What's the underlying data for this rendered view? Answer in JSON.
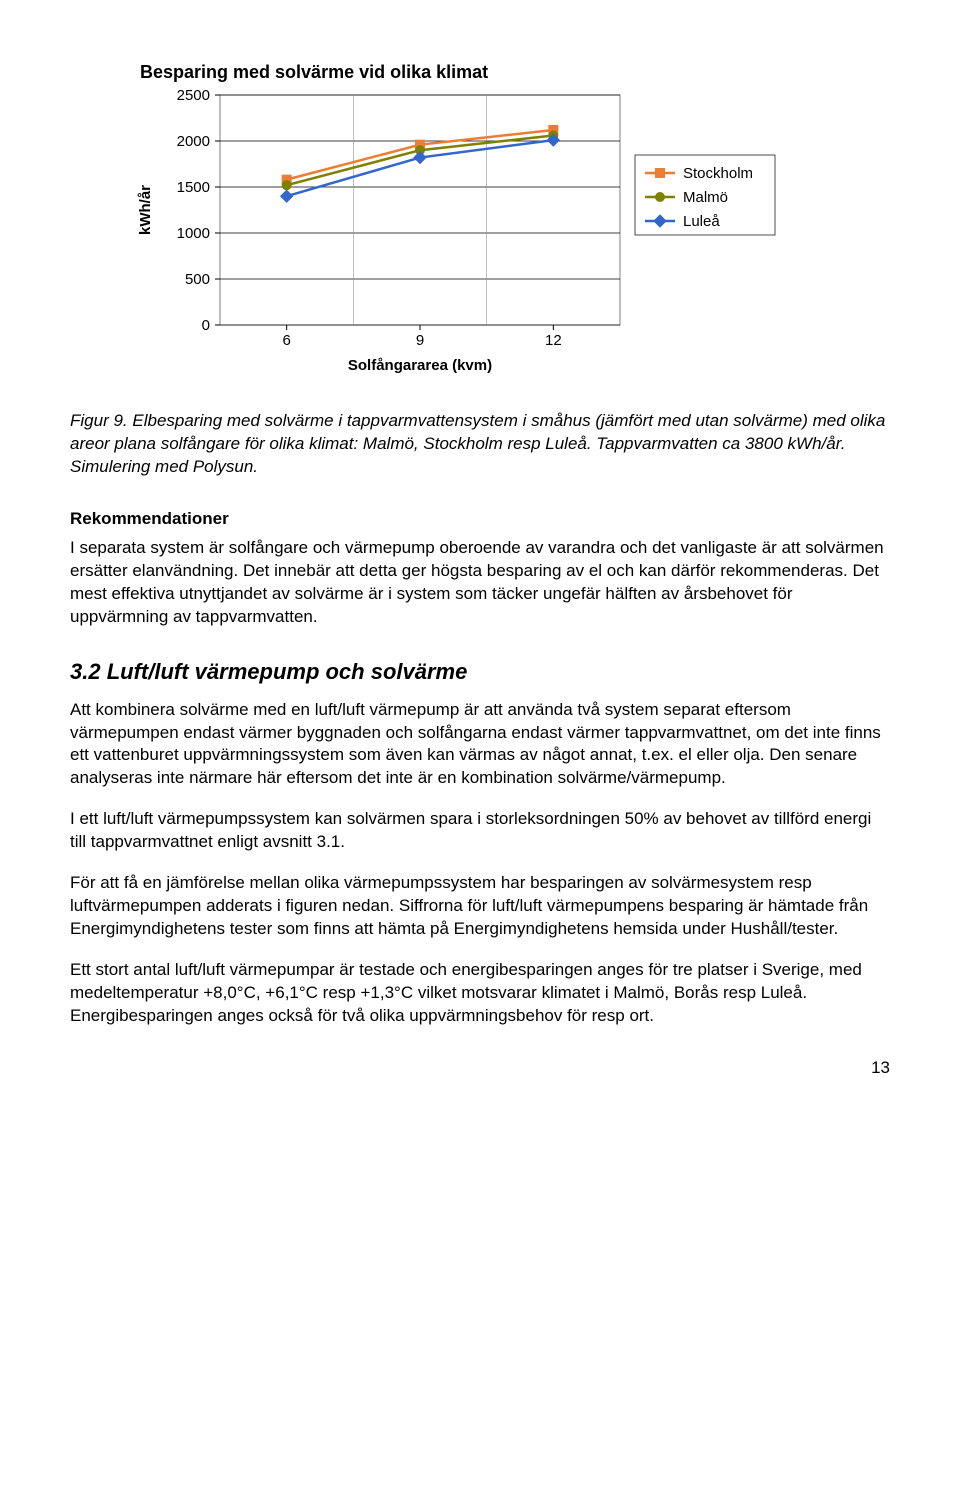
{
  "chart": {
    "type": "line",
    "title": "Besparing med solvärme vid olika klimat",
    "title_fontsize": 18,
    "title_fontweight": "bold",
    "ylabel": "kWh/år",
    "xlabel": "Solfångararea (kvm)",
    "xlabel_fontweight": "bold",
    "categories": [
      "6",
      "9",
      "12"
    ],
    "yticks": [
      "0",
      "500",
      "1000",
      "1500",
      "2000",
      "2500"
    ],
    "ylim": [
      0,
      2500
    ],
    "series": [
      {
        "name": "Stockholm",
        "color": "#ed7d31",
        "marker": "square",
        "values": [
          1580,
          1960,
          2120
        ]
      },
      {
        "name": "Malmö",
        "color": "#808000",
        "marker": "circle",
        "values": [
          1520,
          1900,
          2060
        ]
      },
      {
        "name": "Luleå",
        "color": "#3366cc",
        "marker": "diamond",
        "values": [
          1400,
          1820,
          2010
        ]
      }
    ],
    "background_color": "#ffffff",
    "grid_color": "#000000",
    "plot_border_color": "#808080",
    "axis_fontsize": 15,
    "tick_fontsize": 15,
    "legend_fontsize": 15,
    "line_width": 2.5,
    "marker_size": 9
  },
  "caption": {
    "label": "Figur 9.",
    "text": "Elbesparing med solvärme i tappvarmvattensystem i småhus (jämfört med utan solvärme) med olika areor plana solfångare för olika klimat: Malmö, Stockholm resp Luleå. Tappvarmvatten ca 3800 kWh/år. Simulering med Polysun."
  },
  "rek": {
    "heading": "Rekommendationer",
    "text": "I separata system är solfångare och värmepump oberoende av varandra och det vanligaste är att solvärmen ersätter elanvändning. Det innebär att detta ger högsta besparing av el och kan därför rekommenderas. Det mest effektiva utnyttjandet av solvärme är i system som täcker ungefär hälften av årsbehovet för uppvärmning av tappvarmvatten."
  },
  "section": {
    "number": "3.2",
    "title": "Luft/luft värmepump och solvärme"
  },
  "p1": "Att kombinera solvärme med en luft/luft värmepump är att använda två system separat eftersom värmepumpen endast värmer byggnaden och solfångarna endast värmer tappvarmvattnet, om det inte finns ett vattenburet uppvärmningssystem som även kan värmas av något annat, t.ex. el eller olja. Den senare analyseras inte närmare här eftersom det inte är en kombination solvärme/värmepump.",
  "p2": "I ett luft/luft värmepumpssystem kan solvärmen spara i storleksordningen 50% av behovet av tillförd energi till tappvarmvattnet enligt avsnitt 3.1.",
  "p3": "För att få en jämförelse mellan olika värmepumpssystem har besparingen av solvärmesystem resp luftvärmepumpen adderats i figuren nedan. Siffrorna för luft/luft värmepumpens besparing är hämtade från Energimyndighetens tester som finns att hämta på Energimyndighetens hemsida under Hushåll/tester.",
  "p4": "Ett stort antal luft/luft värmepumpar är testade och energibesparingen anges för tre platser i Sverige, med medeltemperatur +8,0°C, +6,1°C resp +1,3°C vilket motsvarar klimatet i Malmö, Borås resp Luleå. Energibesparingen anges också för två olika uppvärmningsbehov för resp ort.",
  "page_number": "13"
}
